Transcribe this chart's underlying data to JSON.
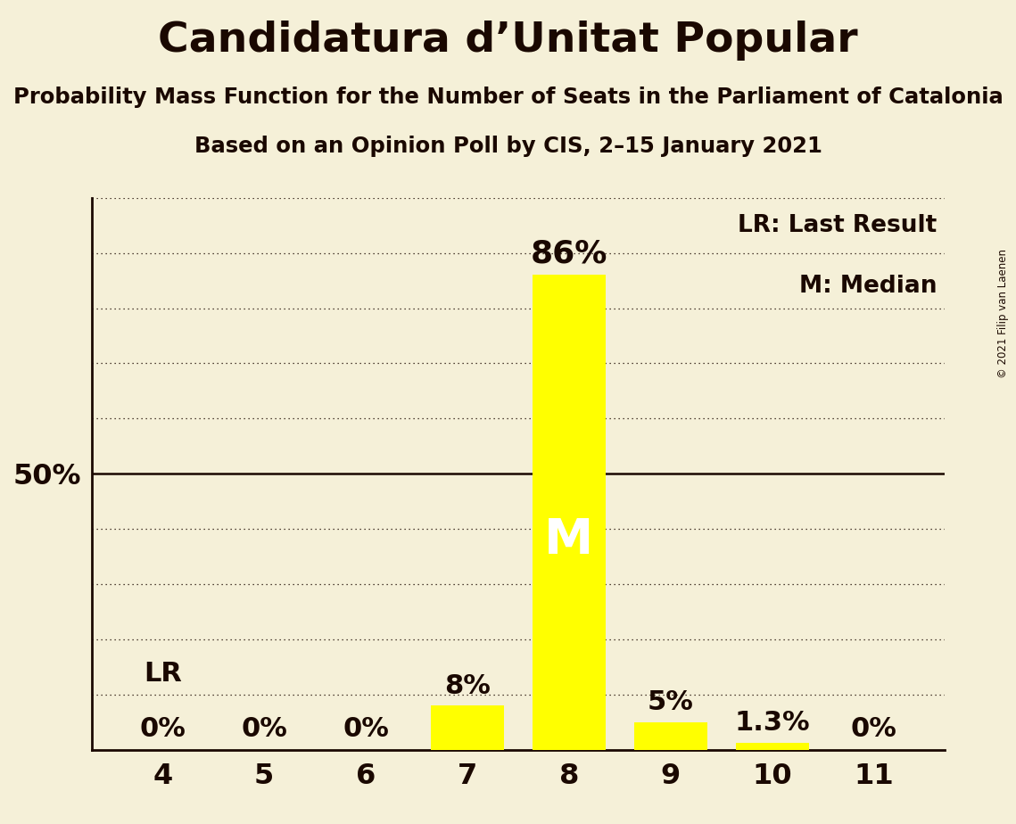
{
  "title": "Candidatura d’Unitat Popular",
  "subtitle1": "Probability Mass Function for the Number of Seats in the Parliament of Catalonia",
  "subtitle2": "Based on an Opinion Poll by CIS, 2–15 January 2021",
  "copyright": "© 2021 Filip van Laenen",
  "categories": [
    4,
    5,
    6,
    7,
    8,
    9,
    10,
    11
  ],
  "values": [
    0.0,
    0.0,
    0.0,
    8.0,
    86.0,
    5.0,
    1.3,
    0.0
  ],
  "bar_color": "#ffff00",
  "background_color": "#f5f0d8",
  "text_color": "#1a0800",
  "median_seat": 8,
  "lr_seat": 4,
  "legend_lr": "LR: Last Result",
  "legend_m": "M: Median",
  "annotations": {
    "4": "0%",
    "5": "0%",
    "6": "0%",
    "7": "8%",
    "8": "86%",
    "9": "5%",
    "10": "1.3%",
    "11": "0%"
  },
  "lr_label": "LR",
  "median_label": "M",
  "ylim": [
    0,
    100
  ],
  "xlim": [
    3.3,
    11.7
  ]
}
